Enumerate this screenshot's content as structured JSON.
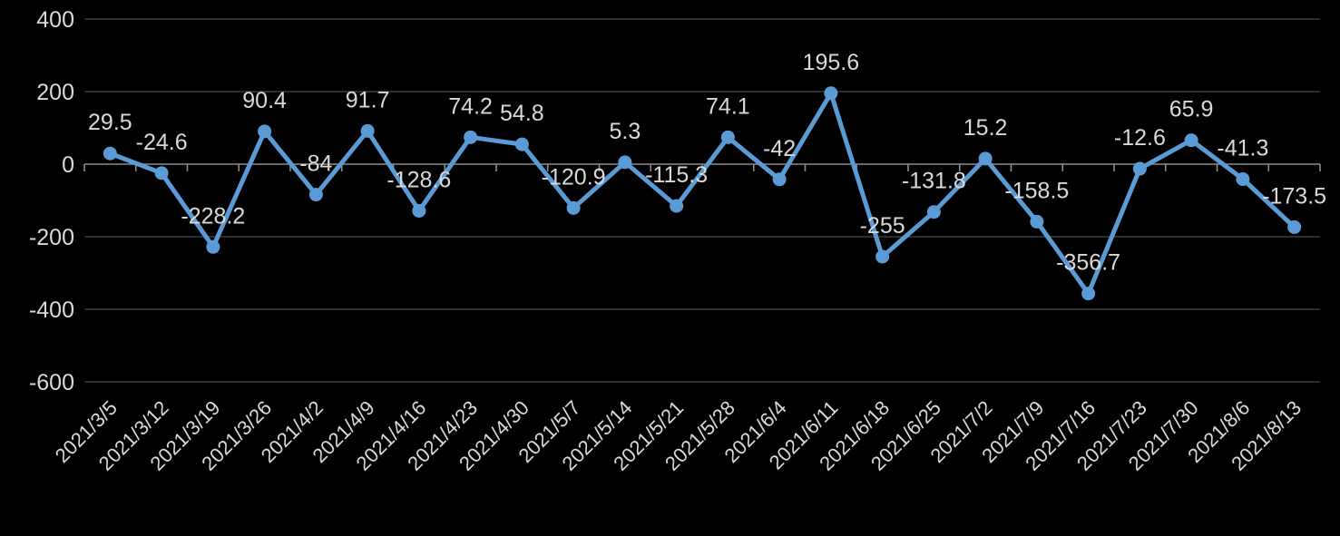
{
  "chart_data": {
    "type": "line",
    "title": "",
    "xlabel": "",
    "ylabel": "",
    "legend": false,
    "grid": true,
    "categories": [
      "2021/3/5",
      "2021/3/12",
      "2021/3/19",
      "2021/3/26",
      "2021/4/2",
      "2021/4/9",
      "2021/4/16",
      "2021/4/23",
      "2021/4/30",
      "2021/5/7",
      "2021/5/14",
      "2021/5/21",
      "2021/5/28",
      "2021/6/4",
      "2021/6/11",
      "2021/6/18",
      "2021/6/25",
      "2021/7/2",
      "2021/7/9",
      "2021/7/16",
      "2021/7/23",
      "2021/7/30",
      "2021/8/6",
      "2021/8/13"
    ],
    "values": [
      29.5,
      -24.6,
      -228.2,
      90.4,
      -84,
      91.7,
      -128.6,
      74.2,
      54.8,
      -120.9,
      5.3,
      -115.3,
      74.1,
      -42,
      195.6,
      -255,
      -131.8,
      15.2,
      -158.5,
      -356.7,
      -12.6,
      65.9,
      -41.3,
      -173.5
    ],
    "data_labels": [
      "29.5",
      "-24.6",
      "-228.2",
      "90.4",
      "-84",
      "91.7",
      "-128.6",
      "74.2",
      "54.8",
      "-120.9",
      "5.3",
      "-115.3",
      "74.1",
      "-42",
      "195.6",
      "-255",
      "-131.8",
      "15.2",
      "-158.5",
      "-356.7",
      "-12.6",
      "65.9",
      "-41.3",
      "-173.5"
    ],
    "ylim": [
      -600,
      400
    ],
    "ytick_labels": [
      "400",
      "200",
      "0",
      "-200",
      "-400",
      "-600"
    ],
    "ytick_values": [
      400,
      200,
      0,
      -200,
      -400,
      -600
    ],
    "colors": {
      "line": "#5b9bd5",
      "marker": "#5b9bd5",
      "background": "#000000",
      "text": "#d9d9d9",
      "gridline": "#3c3c3c",
      "axis": "#8c8c8c"
    }
  }
}
